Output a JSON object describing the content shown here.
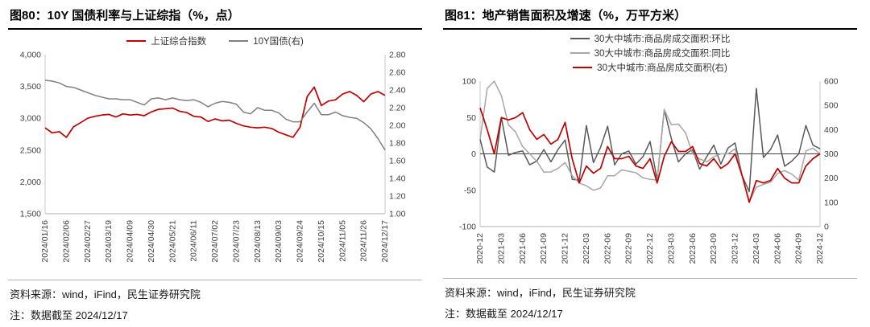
{
  "colors": {
    "brand_red": "#c00000",
    "mid_gray": "#808080",
    "dark_gray": "#595959",
    "light_gray": "#a6a6a6",
    "axis_text": "#404040"
  },
  "panels": [
    {
      "title": "图80：10Y 国债利率与上证综指（%，点）",
      "source": "资料来源：wind，iFind，民生证券研究院",
      "note": "注：数据截至 2024/12/17"
    },
    {
      "title": "图81：地产销售面积及增速（%，万平方米）",
      "source": "资料来源：wind，iFind，民生证券研究院",
      "note": "注：数据截至 2024/12/17"
    }
  ],
  "chart_data": [
    {
      "type": "line",
      "title": "10Y 国债利率与上证综指（%，点）",
      "legend_layout": "row",
      "x_tick_every": 3,
      "x_labels": [
        "2024/01/16",
        "2024/02/06",
        "2024/02/27",
        "2024/03/19",
        "2024/04/09",
        "2024/04/30",
        "2024/05/21",
        "2024/06/11",
        "2024/07/02",
        "2024/07/23",
        "2024/08/13",
        "2024/09/03",
        "2024/09/24",
        "2024/10/15",
        "2024/11/05",
        "2024/11/26",
        "2024/12/17"
      ],
      "y_left": {
        "min": 1500,
        "max": 4000,
        "tick_values": [
          1500,
          2000,
          2500,
          3000,
          3500,
          4000
        ],
        "tick_labels": [
          "1,500",
          "2,000",
          "2,500",
          "3,000",
          "3,500",
          "4,000"
        ]
      },
      "y_right": {
        "min": 1.0,
        "max": 2.8,
        "tick_values": [
          1.0,
          1.2,
          1.4,
          1.6,
          1.8,
          2.0,
          2.2,
          2.4,
          2.6,
          2.8
        ],
        "tick_labels": [
          "1.00",
          "1.20",
          "1.40",
          "1.60",
          "1.80",
          "2.00",
          "2.20",
          "2.40",
          "2.60",
          "2.80"
        ]
      },
      "zero_line": false,
      "series": [
        {
          "name": "上证综合指数",
          "color": "#c00000",
          "axis": "left",
          "width": 1.7,
          "values": [
            2850,
            2770,
            2790,
            2700,
            2865,
            2930,
            3000,
            3030,
            3050,
            3060,
            3020,
            3070,
            3050,
            3060,
            3040,
            3100,
            3140,
            3150,
            3160,
            3110,
            3090,
            3030,
            3020,
            2950,
            2990,
            2960,
            2970,
            2920,
            2880,
            2860,
            2850,
            2860,
            2840,
            2780,
            2740,
            2700,
            2860,
            3340,
            3490,
            3200,
            3270,
            3290,
            3380,
            3420,
            3360,
            3260,
            3380,
            3420,
            3360
          ]
        },
        {
          "name": "10Y国债(右)",
          "color": "#808080",
          "axis": "right",
          "width": 1.5,
          "values": [
            2.51,
            2.5,
            2.48,
            2.44,
            2.43,
            2.4,
            2.37,
            2.34,
            2.32,
            2.3,
            2.3,
            2.29,
            2.29,
            2.26,
            2.23,
            2.3,
            2.31,
            2.29,
            2.31,
            2.29,
            2.28,
            2.29,
            2.26,
            2.21,
            2.25,
            2.27,
            2.26,
            2.24,
            2.15,
            2.13,
            2.2,
            2.17,
            2.17,
            2.14,
            2.07,
            2.04,
            2.04,
            2.15,
            2.25,
            2.12,
            2.12,
            2.15,
            2.11,
            2.09,
            2.08,
            2.03,
            1.96,
            1.85,
            1.72
          ]
        }
      ]
    },
    {
      "type": "line",
      "title": "地产销售面积及增速（%，万平方米）",
      "legend_layout": "column",
      "x_tick_every": 3,
      "x_labels": [
        "2020-12",
        "2021-03",
        "2021-06",
        "2021-09",
        "2021-12",
        "2022-03",
        "2022-06",
        "2022-09",
        "2022-12",
        "2023-03",
        "2023-06",
        "2023-09",
        "2023-12",
        "2024-03",
        "2024-06",
        "2024-09",
        "2024-12"
      ],
      "y_left": {
        "min": -100,
        "max": 100,
        "tick_values": [
          -100,
          -50,
          0,
          50,
          100
        ],
        "tick_labels": [
          "-100",
          "-50",
          "0",
          "50",
          "100"
        ]
      },
      "y_right": {
        "min": 0,
        "max": 600,
        "tick_values": [
          0,
          100,
          200,
          300,
          400,
          500,
          600
        ],
        "tick_labels": [
          "0",
          "100",
          "200",
          "300",
          "400",
          "500",
          "600"
        ]
      },
      "zero_line": true,
      "series": [
        {
          "name": "30大中城市:商品房成交面积:环比",
          "color": "#595959",
          "axis": "left",
          "width": 1.5,
          "values": [
            20,
            -18,
            -25,
            50,
            -2,
            2,
            4,
            -15,
            -10,
            6,
            -11,
            6,
            19,
            -35,
            -36,
            39,
            -12,
            9,
            38,
            -15,
            0,
            4,
            -14,
            -4,
            17,
            -36,
            61,
            21,
            -11,
            0,
            6,
            -21,
            -4,
            12,
            -14,
            8,
            15,
            -30,
            -52,
            90,
            -5,
            6,
            26,
            -17,
            -10,
            0,
            39,
            12,
            7
          ]
        },
        {
          "name": "30大中城市:商品房成交面积:同比",
          "color": "#a6a6a6",
          "axis": "left",
          "width": 1.5,
          "values": [
            20,
            90,
            100,
            80,
            40,
            30,
            10,
            0,
            -10,
            -25,
            -25,
            -20,
            -12,
            -30,
            -40,
            -44,
            -50,
            -47,
            -30,
            -30,
            -22,
            -24,
            -26,
            -33,
            -35,
            -36,
            61,
            40,
            41,
            29,
            0,
            -7,
            -11,
            -4,
            0,
            0,
            7,
            -30,
            -66,
            -46,
            -42,
            -39,
            -27,
            -23,
            -28,
            -36,
            4,
            8,
            0
          ]
        },
        {
          "name": "30大中城市:商品房成交面积(右)",
          "color": "#c00000",
          "axis": "right",
          "width": 1.7,
          "values": [
            490,
            400,
            300,
            450,
            440,
            450,
            470,
            400,
            360,
            380,
            340,
            360,
            430,
            280,
            180,
            250,
            220,
            240,
            330,
            280,
            280,
            290,
            250,
            240,
            280,
            180,
            290,
            350,
            310,
            310,
            330,
            260,
            250,
            280,
            240,
            260,
            300,
            210,
            100,
            190,
            180,
            190,
            240,
            200,
            180,
            180,
            250,
            280,
            300
          ]
        }
      ]
    }
  ]
}
